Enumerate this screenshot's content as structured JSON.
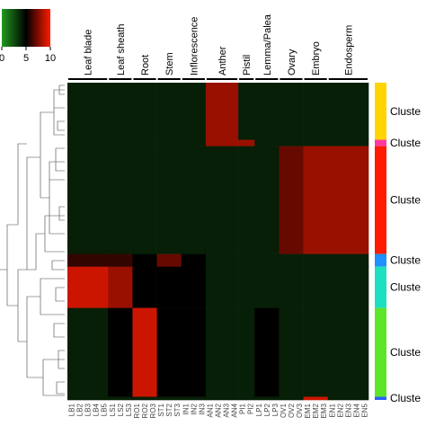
{
  "chart_data": {
    "type": "heatmap",
    "zlim": [
      0,
      10
    ],
    "zticks": [
      0,
      5,
      10
    ],
    "colors": [
      "#1f9a1f",
      "#000000",
      "#ff1a00"
    ],
    "groups": [
      {
        "name": "Leaf blade",
        "samples": [
          "LB1",
          "LB2",
          "LB3",
          "LB4",
          "LB5"
        ]
      },
      {
        "name": "Leaf sheath",
        "samples": [
          "LS1",
          "LS2",
          "LS3"
        ]
      },
      {
        "name": "Root",
        "samples": [
          "RO1",
          "RO2",
          "RO3"
        ]
      },
      {
        "name": "Stem",
        "samples": [
          "ST1",
          "ST2",
          "ST3"
        ]
      },
      {
        "name": "Inflorescence",
        "samples": [
          "IN1",
          "IN2",
          "IN3"
        ]
      },
      {
        "name": "Anther",
        "samples": [
          "AN1",
          "AN2",
          "AN3",
          "AN4"
        ]
      },
      {
        "name": "Pistil",
        "samples": [
          "PI1",
          "PI2"
        ]
      },
      {
        "name": "Lemma/Palea",
        "samples": [
          "LP1",
          "LP2",
          "LP3"
        ]
      },
      {
        "name": "Ovary",
        "samples": [
          "OV1",
          "OV2",
          "OV3"
        ]
      },
      {
        "name": "Embryo",
        "samples": [
          "EM1",
          "EM2",
          "EM3"
        ]
      },
      {
        "name": "Endosperm",
        "samples": [
          "EN1",
          "EN2",
          "EN3",
          "EN4",
          "EN5"
        ]
      }
    ],
    "clusters": [
      {
        "label": "Cluste",
        "color": "#ffd400",
        "size": 18
      },
      {
        "label": "Cluste",
        "color": "#ff3aa0",
        "size": 2
      },
      {
        "label": "Cluste",
        "color": "#ff1a00",
        "size": 34
      },
      {
        "label": "Cluste",
        "color": "#1e90ff",
        "size": 4
      },
      {
        "label": "Cluste",
        "color": "#1de0c0",
        "size": 13
      },
      {
        "label": "Cluste",
        "color": "#5ce62a",
        "size": 28
      },
      {
        "label": "Cluste",
        "color": "#2a60ff",
        "size": 1
      }
    ],
    "values": [
      [
        4,
        4,
        4,
        4,
        4,
        8,
        4,
        4,
        4,
        4,
        4
      ],
      [
        4,
        4,
        4,
        4,
        4,
        8,
        8,
        4,
        4,
        4,
        4
      ],
      [
        4,
        4,
        4,
        4,
        4,
        4,
        4,
        4,
        7,
        8,
        8
      ],
      [
        6,
        6,
        5,
        7,
        5,
        4,
        4,
        4,
        4,
        4,
        4
      ],
      [
        9,
        8,
        5,
        5,
        5,
        4,
        4,
        4,
        4,
        4,
        4
      ],
      [
        4,
        5,
        9,
        5,
        5,
        4,
        4,
        5,
        4,
        4,
        4
      ],
      [
        4,
        4,
        4,
        4,
        4,
        4,
        4,
        4,
        4,
        9,
        4
      ]
    ]
  }
}
